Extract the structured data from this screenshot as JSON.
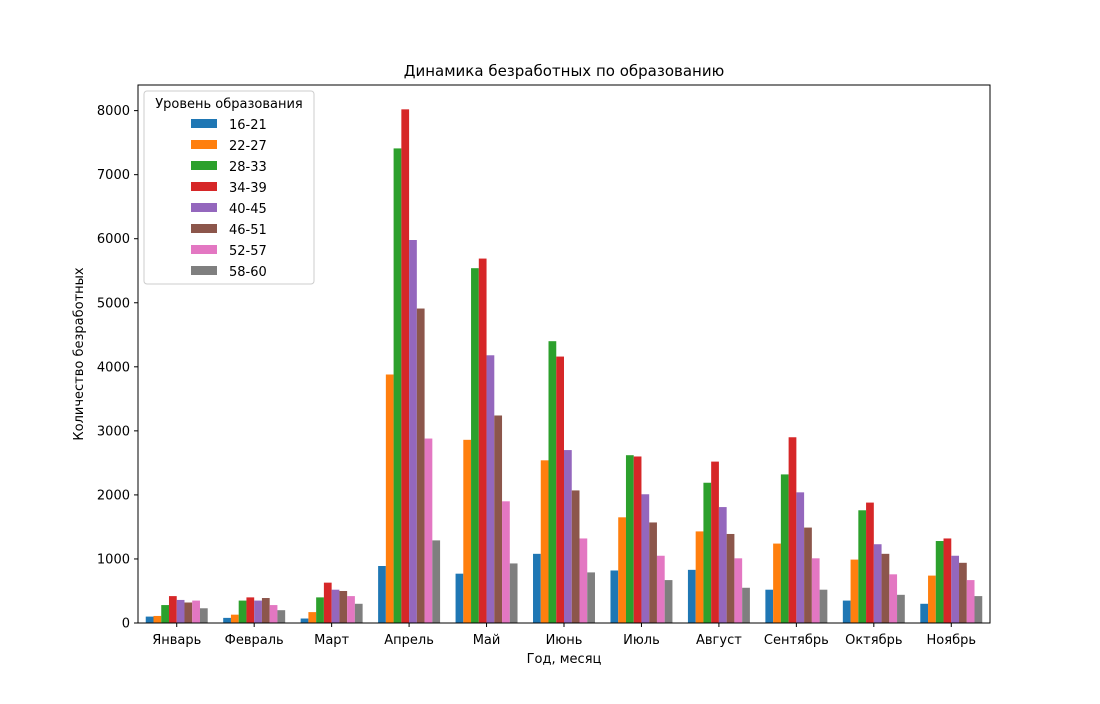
{
  "chart_data": {
    "type": "bar",
    "title": "Динамика безработных по образованию",
    "xlabel": "Год, месяц",
    "ylabel": "Количество безработных",
    "ylim": [
      0,
      8400
    ],
    "yticks": [
      0,
      1000,
      2000,
      3000,
      4000,
      5000,
      6000,
      7000,
      8000
    ],
    "grid": false,
    "legend": {
      "title": "Уровень образования",
      "position": "top-left"
    },
    "categories": [
      "Январь",
      "Февраль",
      "Март",
      "Апрель",
      "Май",
      "Июнь",
      "Июль",
      "Август",
      "Сентябрь",
      "Октябрь",
      "Ноябрь"
    ],
    "series": [
      {
        "name": "16-21",
        "color": "#1f77b4",
        "values": [
          100,
          80,
          70,
          890,
          770,
          1080,
          820,
          830,
          520,
          350,
          300
        ]
      },
      {
        "name": "22-27",
        "color": "#ff7f0e",
        "values": [
          110,
          130,
          170,
          3880,
          2860,
          2540,
          1650,
          1430,
          1240,
          990,
          740
        ]
      },
      {
        "name": "28-33",
        "color": "#2ca02c",
        "values": [
          280,
          350,
          400,
          7410,
          5540,
          4400,
          2620,
          2190,
          2320,
          1760,
          1280
        ]
      },
      {
        "name": "34-39",
        "color": "#d62728",
        "values": [
          420,
          400,
          630,
          8020,
          5690,
          4160,
          2600,
          2520,
          2900,
          1880,
          1320
        ]
      },
      {
        "name": "40-45",
        "color": "#9467bd",
        "values": [
          360,
          350,
          520,
          5980,
          4180,
          2700,
          2010,
          1810,
          2040,
          1230,
          1050
        ]
      },
      {
        "name": "46-51",
        "color": "#8c564b",
        "values": [
          320,
          390,
          500,
          4910,
          3240,
          2070,
          1570,
          1390,
          1490,
          1080,
          940
        ]
      },
      {
        "name": "52-57",
        "color": "#e377c2",
        "values": [
          350,
          280,
          420,
          2880,
          1900,
          1320,
          1050,
          1010,
          1010,
          760,
          670
        ]
      },
      {
        "name": "58-60",
        "color": "#7f7f7f",
        "values": [
          230,
          200,
          300,
          1290,
          930,
          790,
          670,
          550,
          520,
          440,
          420
        ]
      }
    ]
  }
}
